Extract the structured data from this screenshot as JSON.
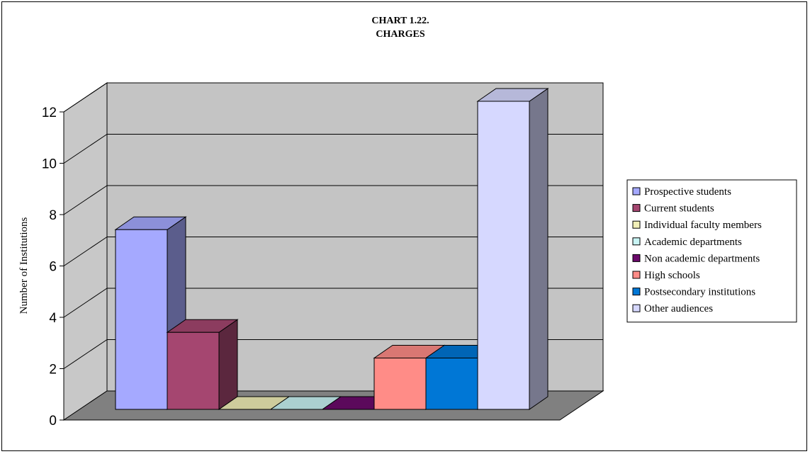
{
  "chart_data": {
    "type": "bar",
    "title": "CHART 1.22.",
    "subtitle": "CHARGES",
    "xlabel": "",
    "ylabel": "Number of Institutions",
    "ylim": [
      0,
      12
    ],
    "yticks": [
      "0",
      "2",
      "4",
      "6",
      "8",
      "10",
      "12"
    ],
    "grid": true,
    "three_d": true,
    "legend_position": "right",
    "series": [
      {
        "name": "Prospective students",
        "value": 7,
        "color": "#a5a9ff"
      },
      {
        "name": "Current students",
        "value": 3,
        "color": "#a54670"
      },
      {
        "name": "Individual faculty members",
        "value": 0,
        "color": "#f2f0b8"
      },
      {
        "name": "Academic departments",
        "value": 0,
        "color": "#c9f5f5"
      },
      {
        "name": "Non academic departments",
        "value": 0,
        "color": "#6b0a6b"
      },
      {
        "name": "High schools",
        "value": 2,
        "color": "#ff8c87"
      },
      {
        "name": "Postsecondary institutions",
        "value": 2,
        "color": "#0077d6"
      },
      {
        "name": "Other audiences",
        "value": 12,
        "color": "#d6d8ff"
      }
    ],
    "colors": {
      "wall": "#c4c4c4",
      "floor": "#808080",
      "side_wall": "#c8c8c8"
    }
  }
}
